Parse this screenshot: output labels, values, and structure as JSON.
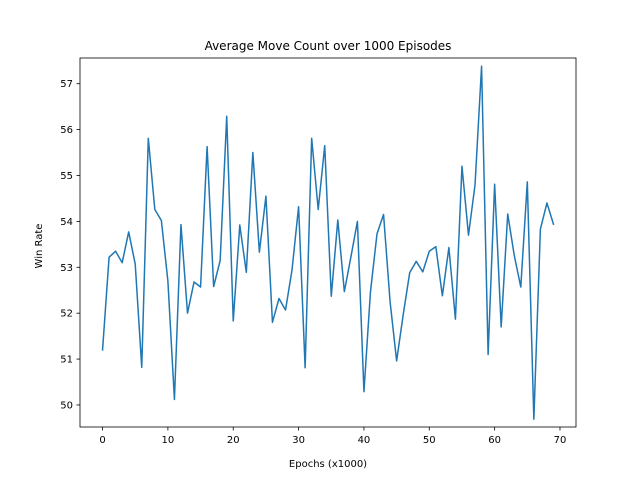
{
  "chart_data": {
    "type": "line",
    "title": "Average Move Count over 1000 Episodes",
    "xlabel": "Epochs (x1000)",
    "ylabel": "Win Rate",
    "xlim": [
      -3.45,
      72.45
    ],
    "ylim": [
      49.52,
      57.56
    ],
    "xticks": [
      0,
      10,
      20,
      30,
      40,
      50,
      60,
      70
    ],
    "yticks": [
      50,
      51,
      52,
      53,
      54,
      55,
      56,
      57
    ],
    "grid": false,
    "series": [
      {
        "color": "#1f77b4",
        "x": [
          0,
          1,
          2,
          3,
          4,
          5,
          6,
          7,
          8,
          9,
          10,
          11,
          12,
          13,
          14,
          15,
          16,
          17,
          18,
          19,
          20,
          21,
          22,
          23,
          24,
          25,
          26,
          27,
          28,
          29,
          30,
          31,
          32,
          33,
          34,
          35,
          36,
          37,
          38,
          39,
          40,
          41,
          42,
          43,
          44,
          45,
          46,
          47,
          48,
          49,
          50,
          51,
          52,
          53,
          54,
          55,
          56,
          57,
          58,
          59,
          60,
          61,
          62,
          63,
          64,
          65,
          66,
          67,
          68,
          69
        ],
        "y": [
          51.2,
          53.22,
          53.35,
          53.1,
          53.77,
          53.07,
          50.82,
          55.81,
          54.26,
          54.02,
          52.7,
          50.12,
          53.93,
          52.0,
          52.68,
          52.57,
          55.63,
          52.58,
          53.15,
          56.29,
          51.83,
          53.92,
          52.89,
          55.5,
          53.33,
          54.55,
          51.8,
          52.32,
          52.07,
          52.95,
          54.32,
          50.81,
          55.81,
          54.26,
          55.65,
          52.37,
          54.03,
          52.47,
          53.22,
          54.0,
          50.29,
          52.47,
          53.73,
          54.15,
          52.25,
          50.96,
          51.96,
          52.88,
          53.13,
          52.9,
          53.35,
          53.45,
          52.38,
          53.43,
          51.87,
          55.2,
          53.7,
          54.8,
          57.38,
          51.1,
          54.81,
          51.7,
          54.16,
          53.26,
          52.57,
          54.86,
          49.69,
          53.83,
          54.4,
          53.94
        ]
      }
    ]
  }
}
